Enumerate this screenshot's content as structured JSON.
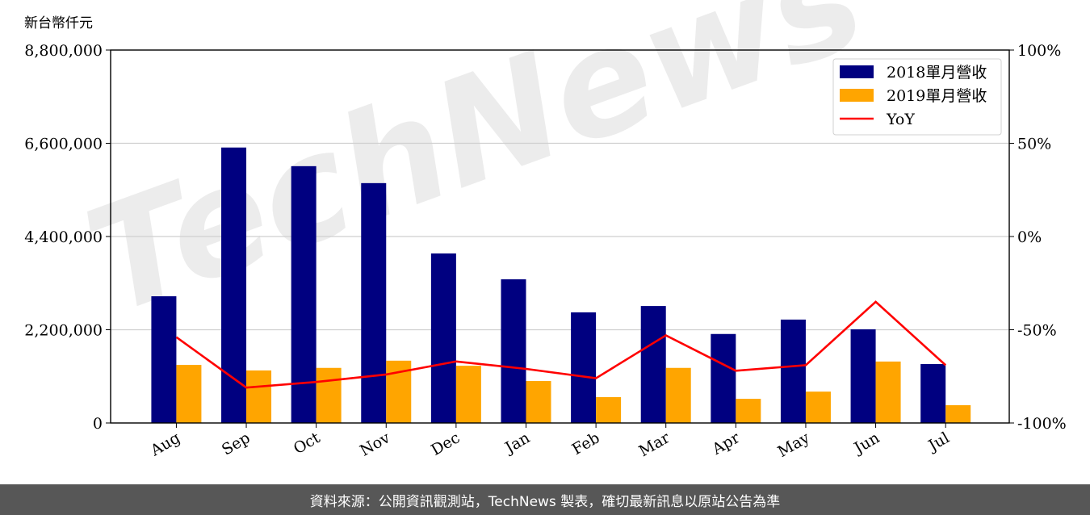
{
  "chart_data": {
    "type": "bar",
    "ylabel_left": "新台幣仟元",
    "categories": [
      "Aug",
      "Sep",
      "Oct",
      "Nov",
      "Dec",
      "Jan",
      "Feb",
      "Mar",
      "Apr",
      "May",
      "Jun",
      "Jul"
    ],
    "series": [
      {
        "name": "2018單月營收",
        "type": "bar",
        "axis": "left",
        "color": "#000080",
        "values": [
          2990000,
          6500000,
          6060000,
          5660000,
          4000000,
          3390000,
          2610000,
          2760000,
          2100000,
          2440000,
          2210000,
          1390000
        ]
      },
      {
        "name": "2019單月營收",
        "type": "bar",
        "axis": "left",
        "color": "#FFA500",
        "values": [
          1370000,
          1240000,
          1300000,
          1470000,
          1350000,
          990000,
          610000,
          1300000,
          570000,
          740000,
          1450000,
          420000
        ]
      },
      {
        "name": "YoY",
        "type": "line",
        "axis": "right",
        "color": "#FF0000",
        "values": [
          -54,
          -81,
          -78,
          -74,
          -67,
          -71,
          -76,
          -53,
          -72,
          -69,
          -35,
          -69
        ]
      }
    ],
    "ylim_left": [
      0,
      8800000
    ],
    "yticks_left": [
      "0",
      "2,200,000",
      "4,400,000",
      "6,600,000",
      "8,800,000"
    ],
    "ylim_right": [
      -100,
      100
    ],
    "yticks_right": [
      "-100%",
      "-50%",
      "0%",
      "50%",
      "100%"
    ],
    "grid": "horizontal",
    "legend_placement": "top-right"
  },
  "watermark": "TechNews",
  "footer": "資料來源：公開資訊觀測站，TechNews 製表，確切最新訊息以原站公告為準"
}
